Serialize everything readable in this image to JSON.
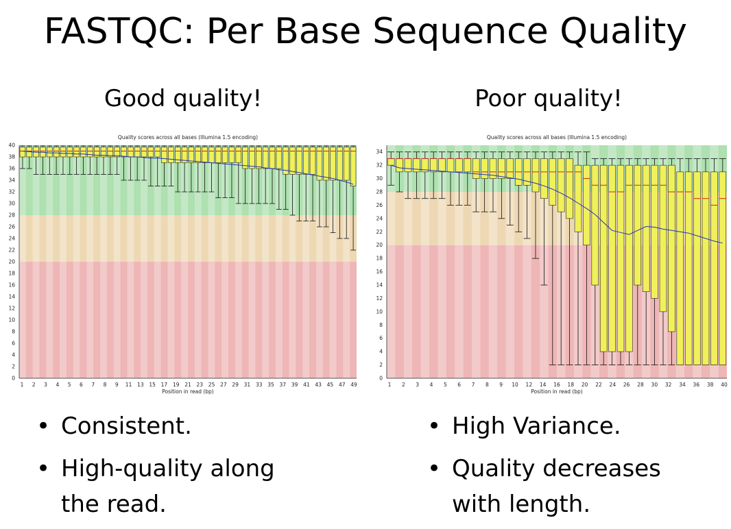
{
  "slide": {
    "title": "FASTQC: Per Base Sequence Quality",
    "left_heading": "Good quality!",
    "right_heading": "Poor quality!"
  },
  "bullets": {
    "left": [
      "Consistent.",
      "High-quality along the read."
    ],
    "right": [
      "High Variance.",
      "Quality decreases with length."
    ],
    "marker": "•"
  },
  "colors": {
    "green_band": "#aee0b0",
    "orange_band": "#eed8b4",
    "red_band": "#eeb6b6",
    "box_fill": "#f0f05a",
    "median_line": "#cc2222",
    "mean_line": "#2233bb"
  },
  "chart_data": [
    {
      "type": "box",
      "title": "Quality scores across all bases (Illumina 1.5 encoding)",
      "xlabel": "Position in read (bp)",
      "ylabel": "",
      "ylim": [
        0,
        40
      ],
      "yticks": [
        0,
        2,
        4,
        6,
        8,
        10,
        12,
        14,
        16,
        18,
        20,
        22,
        24,
        26,
        28,
        30,
        32,
        34,
        36,
        38,
        40
      ],
      "x_tick_labels": [
        "1",
        "2",
        "3",
        "4",
        "5",
        "6",
        "7",
        "8",
        "9",
        "11",
        "13",
        "15",
        "17",
        "19",
        "21",
        "23",
        "25",
        "27",
        "29",
        "31",
        "33",
        "35",
        "37",
        "39",
        "41",
        "43",
        "45",
        "47",
        "49"
      ],
      "bands": [
        {
          "from": 28,
          "to": 40,
          "zone": "good"
        },
        {
          "from": 20,
          "to": 28,
          "zone": "reasonable"
        },
        {
          "from": 0,
          "to": 20,
          "zone": "poor"
        }
      ],
      "boxes": [
        {
          "low": 36,
          "q1": 38,
          "median": 39,
          "q3": 39.7,
          "high": 39.9
        },
        {
          "low": 36,
          "q1": 38,
          "median": 39,
          "q3": 39.7,
          "high": 39.9
        },
        {
          "low": 35,
          "q1": 38,
          "median": 39,
          "q3": 39.7,
          "high": 39.9
        },
        {
          "low": 35,
          "q1": 38,
          "median": 39,
          "q3": 39.7,
          "high": 39.9
        },
        {
          "low": 35,
          "q1": 38,
          "median": 39,
          "q3": 39.7,
          "high": 39.9
        },
        {
          "low": 35,
          "q1": 38,
          "median": 39,
          "q3": 39.7,
          "high": 39.9
        },
        {
          "low": 35,
          "q1": 38,
          "median": 39,
          "q3": 39.7,
          "high": 39.9
        },
        {
          "low": 35,
          "q1": 38,
          "median": 39,
          "q3": 39.7,
          "high": 39.9
        },
        {
          "low": 35,
          "q1": 38,
          "median": 39,
          "q3": 39.7,
          "high": 39.9
        },
        {
          "low": 35,
          "q1": 38,
          "median": 39,
          "q3": 39.7,
          "high": 39.9
        },
        {
          "low": 35,
          "q1": 38,
          "median": 39,
          "q3": 39.7,
          "high": 39.9
        },
        {
          "low": 35,
          "q1": 38,
          "median": 39,
          "q3": 39.7,
          "high": 39.9
        },
        {
          "low": 35,
          "q1": 38,
          "median": 39,
          "q3": 39.7,
          "high": 39.9
        },
        {
          "low": 35,
          "q1": 38,
          "median": 39,
          "q3": 39.7,
          "high": 39.9
        },
        {
          "low": 35,
          "q1": 38,
          "median": 39,
          "q3": 39.7,
          "high": 39.9
        },
        {
          "low": 34,
          "q1": 38,
          "median": 39,
          "q3": 39.7,
          "high": 39.9
        },
        {
          "low": 34,
          "q1": 38,
          "median": 39,
          "q3": 39.7,
          "high": 39.9
        },
        {
          "low": 34,
          "q1": 38,
          "median": 39,
          "q3": 39.7,
          "high": 39.9
        },
        {
          "low": 34,
          "q1": 38,
          "median": 39,
          "q3": 39.7,
          "high": 39.9
        },
        {
          "low": 33,
          "q1": 38,
          "median": 39,
          "q3": 39.7,
          "high": 39.9
        },
        {
          "low": 33,
          "q1": 38,
          "median": 39,
          "q3": 39.7,
          "high": 39.9
        },
        {
          "low": 33,
          "q1": 37,
          "median": 39,
          "q3": 39.7,
          "high": 39.9
        },
        {
          "low": 33,
          "q1": 37,
          "median": 39,
          "q3": 39.7,
          "high": 39.9
        },
        {
          "low": 32,
          "q1": 37,
          "median": 39,
          "q3": 39.7,
          "high": 39.9
        },
        {
          "low": 32,
          "q1": 37,
          "median": 39,
          "q3": 39.7,
          "high": 39.9
        },
        {
          "low": 32,
          "q1": 37,
          "median": 39,
          "q3": 39.7,
          "high": 39.9
        },
        {
          "low": 32,
          "q1": 37,
          "median": 39,
          "q3": 39.7,
          "high": 39.9
        },
        {
          "low": 32,
          "q1": 37,
          "median": 39,
          "q3": 39.7,
          "high": 39.9
        },
        {
          "low": 32,
          "q1": 37,
          "median": 39,
          "q3": 39.7,
          "high": 39.9
        },
        {
          "low": 31,
          "q1": 37,
          "median": 39,
          "q3": 39.7,
          "high": 39.9
        },
        {
          "low": 31,
          "q1": 37,
          "median": 39,
          "q3": 39.7,
          "high": 39.9
        },
        {
          "low": 31,
          "q1": 37,
          "median": 39,
          "q3": 39.7,
          "high": 39.9
        },
        {
          "low": 30,
          "q1": 37,
          "median": 39,
          "q3": 39.7,
          "high": 39.9
        },
        {
          "low": 30,
          "q1": 36,
          "median": 39,
          "q3": 39.7,
          "high": 39.9
        },
        {
          "low": 30,
          "q1": 36,
          "median": 39,
          "q3": 39.7,
          "high": 39.9
        },
        {
          "low": 30,
          "q1": 36,
          "median": 39,
          "q3": 39.7,
          "high": 39.9
        },
        {
          "low": 30,
          "q1": 36,
          "median": 39,
          "q3": 39.7,
          "high": 39.9
        },
        {
          "low": 30,
          "q1": 36,
          "median": 39,
          "q3": 39.7,
          "high": 39.9
        },
        {
          "low": 29,
          "q1": 36,
          "median": 39,
          "q3": 39.7,
          "high": 39.9
        },
        {
          "low": 29,
          "q1": 35,
          "median": 39,
          "q3": 39.7,
          "high": 39.9
        },
        {
          "low": 28,
          "q1": 35,
          "median": 39,
          "q3": 39.7,
          "high": 39.9
        },
        {
          "low": 27,
          "q1": 35,
          "median": 39,
          "q3": 39.7,
          "high": 39.9
        },
        {
          "low": 27,
          "q1": 35,
          "median": 39,
          "q3": 39.7,
          "high": 39.9
        },
        {
          "low": 27,
          "q1": 35,
          "median": 39,
          "q3": 39.7,
          "high": 39.9
        },
        {
          "low": 26,
          "q1": 34,
          "median": 39,
          "q3": 39.7,
          "high": 39.9
        },
        {
          "low": 26,
          "q1": 34,
          "median": 39,
          "q3": 39.7,
          "high": 39.9
        },
        {
          "low": 25,
          "q1": 34,
          "median": 39,
          "q3": 39.7,
          "high": 39.9
        },
        {
          "low": 24,
          "q1": 34,
          "median": 39,
          "q3": 39.7,
          "high": 39.9
        },
        {
          "low": 24,
          "q1": 34,
          "median": 39,
          "q3": 39.7,
          "high": 39.9
        },
        {
          "low": 22,
          "q1": 33,
          "median": 39,
          "q3": 39.7,
          "high": 39.9
        }
      ],
      "mean": [
        39,
        38.9,
        38.8,
        38.8,
        38.7,
        38.7,
        38.6,
        38.6,
        38.5,
        38.5,
        38.4,
        38.3,
        38.3,
        38.2,
        38.2,
        38.1,
        38,
        38,
        37.9,
        37.8,
        37.8,
        37.7,
        37.6,
        37.5,
        37.4,
        37.3,
        37.2,
        37.1,
        37,
        36.9,
        36.8,
        36.7,
        36.6,
        36.5,
        36.4,
        36.3,
        36.1,
        36,
        35.8,
        35.7,
        35.5,
        35.3,
        35.1,
        34.9,
        34.7,
        34.5,
        34.3,
        34,
        33.7,
        33.3
      ]
    },
    {
      "type": "box",
      "title": "Quality scores across all bases (Illumina 1.5 encoding)",
      "xlabel": "Position in read (bp)",
      "ylabel": "",
      "ylim": [
        0,
        35
      ],
      "yticks": [
        0,
        2,
        4,
        6,
        8,
        10,
        12,
        14,
        16,
        18,
        20,
        22,
        24,
        26,
        28,
        30,
        32,
        34
      ],
      "x_tick_labels": [
        "1",
        "2",
        "3",
        "4",
        "5",
        "6",
        "7",
        "8",
        "9",
        "10",
        "12",
        "14",
        "16",
        "18",
        "20",
        "22",
        "24",
        "26",
        "28",
        "30",
        "32",
        "34",
        "36",
        "38",
        "40"
      ],
      "bands": [
        {
          "from": 28,
          "to": 35,
          "zone": "good"
        },
        {
          "from": 20,
          "to": 28,
          "zone": "reasonable"
        },
        {
          "from": 0,
          "to": 20,
          "zone": "poor"
        }
      ],
      "boxes": [
        {
          "low": 29,
          "q1": 32,
          "median": 33,
          "q3": 33,
          "high": 34
        },
        {
          "low": 28,
          "q1": 31,
          "median": 33,
          "q3": 33,
          "high": 34
        },
        {
          "low": 27,
          "q1": 31,
          "median": 33,
          "q3": 33,
          "high": 34
        },
        {
          "low": 27,
          "q1": 31,
          "median": 33,
          "q3": 33,
          "high": 34
        },
        {
          "low": 27,
          "q1": 31,
          "median": 33,
          "q3": 33,
          "high": 34
        },
        {
          "low": 27,
          "q1": 31,
          "median": 33,
          "q3": 33,
          "high": 34
        },
        {
          "low": 27,
          "q1": 31,
          "median": 33,
          "q3": 33,
          "high": 34
        },
        {
          "low": 26,
          "q1": 31,
          "median": 33,
          "q3": 33,
          "high": 34
        },
        {
          "low": 26,
          "q1": 31,
          "median": 33,
          "q3": 33,
          "high": 34
        },
        {
          "low": 26,
          "q1": 31,
          "median": 33,
          "q3": 33,
          "high": 34
        },
        {
          "low": 25,
          "q1": 30,
          "median": 31,
          "q3": 33,
          "high": 34
        },
        {
          "low": 25,
          "q1": 30,
          "median": 31,
          "q3": 33,
          "high": 34
        },
        {
          "low": 25,
          "q1": 30,
          "median": 31,
          "q3": 33,
          "high": 34
        },
        {
          "low": 24,
          "q1": 30,
          "median": 31,
          "q3": 33,
          "high": 34
        },
        {
          "low": 23,
          "q1": 30,
          "median": 31,
          "q3": 33,
          "high": 34
        },
        {
          "low": 22,
          "q1": 29,
          "median": 31,
          "q3": 33,
          "high": 34
        },
        {
          "low": 21,
          "q1": 29,
          "median": 31,
          "q3": 33,
          "high": 34
        },
        {
          "low": 18,
          "q1": 28,
          "median": 31,
          "q3": 33,
          "high": 34
        },
        {
          "low": 14,
          "q1": 27,
          "median": 31,
          "q3": 33,
          "high": 34
        },
        {
          "low": 2,
          "q1": 26,
          "median": 31,
          "q3": 33,
          "high": 34
        },
        {
          "low": 2,
          "q1": 25,
          "median": 31,
          "q3": 33,
          "high": 34
        },
        {
          "low": 2,
          "q1": 24,
          "median": 31,
          "q3": 33,
          "high": 34
        },
        {
          "low": 2,
          "q1": 22,
          "median": 31,
          "q3": 32,
          "high": 34
        },
        {
          "low": 2,
          "q1": 20,
          "median": 30,
          "q3": 32,
          "high": 34
        },
        {
          "low": 2,
          "q1": 14,
          "median": 29,
          "q3": 32,
          "high": 33
        },
        {
          "low": 2,
          "q1": 4,
          "median": 29,
          "q3": 32,
          "high": 33
        },
        {
          "low": 2,
          "q1": 4,
          "median": 28,
          "q3": 32,
          "high": 33
        },
        {
          "low": 2,
          "q1": 4,
          "median": 28,
          "q3": 32,
          "high": 33
        },
        {
          "low": 2,
          "q1": 4,
          "median": 29,
          "q3": 32,
          "high": 33
        },
        {
          "low": 2,
          "q1": 14,
          "median": 29,
          "q3": 32,
          "high": 33
        },
        {
          "low": 2,
          "q1": 13,
          "median": 29,
          "q3": 32,
          "high": 33
        },
        {
          "low": 2,
          "q1": 12,
          "median": 29,
          "q3": 32,
          "high": 33
        },
        {
          "low": 2,
          "q1": 10,
          "median": 29,
          "q3": 32,
          "high": 33
        },
        {
          "low": 2,
          "q1": 7,
          "median": 28,
          "q3": 32,
          "high": 33
        },
        {
          "low": 2,
          "q1": 2,
          "median": 28,
          "q3": 31,
          "high": 33
        },
        {
          "low": 2,
          "q1": 2,
          "median": 28,
          "q3": 31,
          "high": 33
        },
        {
          "low": 2,
          "q1": 2,
          "median": 27,
          "q3": 31,
          "high": 33
        },
        {
          "low": 2,
          "q1": 2,
          "median": 27,
          "q3": 31,
          "high": 33
        },
        {
          "low": 2,
          "q1": 2,
          "median": 26,
          "q3": 31,
          "high": 33
        },
        {
          "low": 2,
          "q1": 2,
          "median": 27,
          "q3": 31,
          "high": 33
        }
      ],
      "mean": [
        32,
        31.6,
        31.5,
        31.4,
        31.3,
        31.2,
        31.1,
        31,
        30.9,
        30.8,
        30.7,
        30.6,
        30.5,
        30.3,
        30.1,
        29.9,
        29.6,
        29.3,
        28.9,
        28.4,
        27.8,
        27.1,
        26.3,
        25.5,
        24.6,
        23.4,
        22.2,
        21.9,
        21.6,
        22.2,
        22.8,
        22.7,
        22.4,
        22.2,
        22,
        21.8,
        21.4,
        21,
        20.6,
        20.3
      ]
    }
  ]
}
